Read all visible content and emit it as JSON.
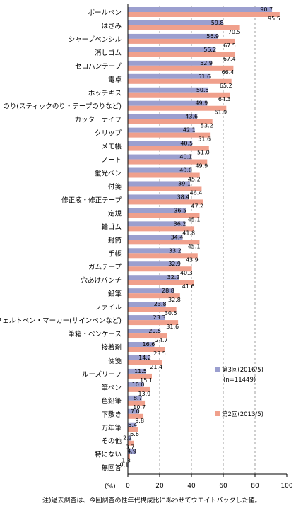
{
  "chart_data": {
    "type": "bar",
    "orientation": "horizontal",
    "categories": [
      "ボールペン",
      "はさみ",
      "シャープペンシル",
      "消しゴム",
      "セロハンテープ",
      "電卓",
      "ホッチキス",
      "のり(スティックのり・テープのりなど)",
      "カッターナイフ",
      "クリップ",
      "メモ帳",
      "ノート",
      "蛍光ペン",
      "付箋",
      "修正液・修正テープ",
      "定規",
      "輪ゴム",
      "封筒",
      "手帳",
      "ガムテープ",
      "穴あけパンチ",
      "鉛筆",
      "ファイル",
      "フェルトペン・マーカー(サインペンなど)",
      "筆箱・ペンケース",
      "接着剤",
      "便箋",
      "ルーズリーフ",
      "筆ペン",
      "色鉛筆",
      "下敷き",
      "万年筆",
      "その他",
      "特にない",
      "無回答"
    ],
    "series": [
      {
        "name": "第3回(2016/5)",
        "sample": "(n=11449)",
        "color": "#9b9fcf",
        "values": [
          90.7,
          59.8,
          56.9,
          55.2,
          52.9,
          51.6,
          50.5,
          49.9,
          43.6,
          42.1,
          40.5,
          40.1,
          40.0,
          39.1,
          38.4,
          36.5,
          36.2,
          34.4,
          33.2,
          32.9,
          32.2,
          28.8,
          23.8,
          23.3,
          20.5,
          16.6,
          14.2,
          11.5,
          10.0,
          8.7,
          7.0,
          5.4,
          2.2,
          4.9,
          0.1
        ]
      },
      {
        "name": "第2回(2013/5)",
        "color": "#f0a08c",
        "values": [
          95.5,
          70.5,
          67.5,
          67.4,
          66.4,
          65.2,
          64.3,
          61.9,
          53.2,
          51.6,
          51.0,
          49.9,
          45.2,
          46.4,
          47.2,
          45.1,
          41.8,
          45.1,
          43.9,
          40.3,
          41.6,
          32.8,
          30.5,
          31.6,
          24.7,
          23.5,
          21.4,
          15.1,
          13.9,
          10.7,
          9.8,
          6.6,
          3.7,
          1.3,
          null
        ]
      }
    ],
    "xlim": [
      0,
      100
    ],
    "xticks": [
      "0",
      "20",
      "40",
      "60",
      "80",
      "100"
    ],
    "xlabel": "(%)",
    "grid": "vertical dashed",
    "legend": "right"
  },
  "note": "注)過去調査は、今回調査の性年代構成比にあわせてウエイトバックした値。"
}
